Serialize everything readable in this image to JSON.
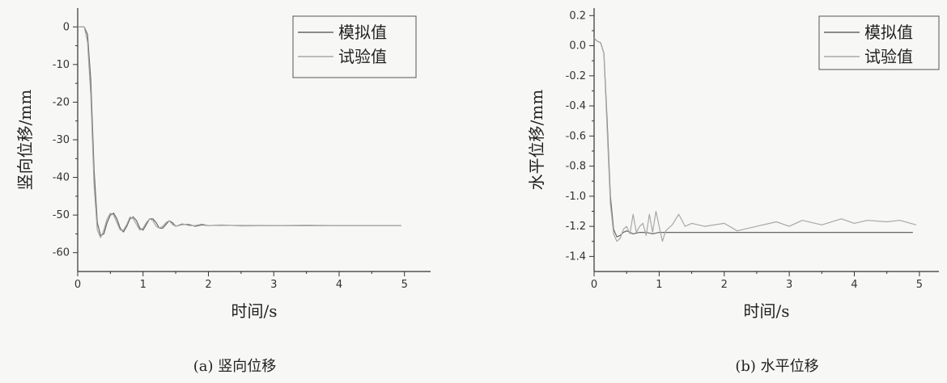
{
  "chart_data": [
    {
      "type": "line",
      "caption": "(a)   竖向位移",
      "xlabel": "时间/s",
      "ylabel": "竖向位移/mm",
      "xlim": [
        0,
        5.4
      ],
      "ylim": [
        -65,
        5
      ],
      "xticks": [
        0,
        1,
        2,
        3,
        4,
        5
      ],
      "yticks": [
        0,
        -10,
        -20,
        -30,
        -40,
        -50,
        -60
      ],
      "legend_position": "top-right",
      "series": [
        {
          "name": "模拟值",
          "color": "#666666",
          "x": [
            0,
            0.1,
            0.15,
            0.2,
            0.25,
            0.3,
            0.35,
            0.4,
            0.45,
            0.5,
            0.55,
            0.6,
            0.65,
            0.7,
            0.75,
            0.8,
            0.85,
            0.9,
            0.95,
            1.0,
            1.05,
            1.1,
            1.15,
            1.2,
            1.25,
            1.3,
            1.35,
            1.4,
            1.45,
            1.5,
            1.6,
            1.7,
            1.8,
            1.9,
            2.0,
            2.2,
            2.5,
            3.0,
            3.5,
            4.0,
            4.5,
            4.95
          ],
          "y": [
            0,
            0,
            -2,
            -14,
            -38,
            -52,
            -55.5,
            -55,
            -52,
            -50,
            -49.5,
            -51,
            -53.5,
            -54.5,
            -53,
            -51,
            -50.5,
            -51.5,
            -53.5,
            -54,
            -52.5,
            -51,
            -51,
            -52,
            -53.5,
            -53.5,
            -52.5,
            -51.5,
            -52,
            -53,
            -52.5,
            -52.5,
            -53,
            -52.6,
            -52.8,
            -52.7,
            -52.8,
            -52.8,
            -52.8,
            -52.8,
            -52.8,
            -52.8
          ]
        },
        {
          "name": "试验值",
          "color": "#a8a8a8",
          "x": [
            0,
            0.1,
            0.15,
            0.2,
            0.25,
            0.3,
            0.35,
            0.4,
            0.45,
            0.5,
            0.55,
            0.6,
            0.65,
            0.7,
            0.75,
            0.8,
            0.85,
            0.9,
            0.95,
            1.0,
            1.05,
            1.1,
            1.15,
            1.2,
            1.25,
            1.3,
            1.35,
            1.4,
            1.45,
            1.5,
            1.6,
            1.7,
            1.8,
            1.9,
            2.0,
            2.2,
            2.5,
            3.0,
            3.5,
            4.0,
            4.5,
            4.95
          ],
          "y": [
            0,
            0,
            -4,
            -18,
            -42,
            -54,
            -56,
            -54,
            -51,
            -49.5,
            -50,
            -52,
            -54,
            -54,
            -52.5,
            -50.5,
            -51,
            -52.5,
            -54,
            -53.5,
            -52,
            -51,
            -51.5,
            -53,
            -53.5,
            -53,
            -52,
            -51.5,
            -52.5,
            -53,
            -52.3,
            -52.8,
            -52.8,
            -52.4,
            -52.8,
            -52.6,
            -52.9,
            -52.8,
            -52.7,
            -52.8,
            -52.8,
            -52.8
          ]
        }
      ]
    },
    {
      "type": "line",
      "caption": "(b)  水平位移",
      "xlabel": "时间/s",
      "ylabel": "水平位移/mm",
      "xlim": [
        0,
        5.3
      ],
      "ylim": [
        -1.5,
        0.25
      ],
      "xticks": [
        0,
        1,
        2,
        3,
        4,
        5
      ],
      "yticks": [
        0.2,
        0.0,
        -0.2,
        -0.4,
        -0.6,
        -0.8,
        -1.0,
        -1.2,
        -1.4
      ],
      "legend_position": "top-right",
      "series": [
        {
          "name": "模拟值",
          "color": "#666666",
          "x": [
            0,
            0.05,
            0.1,
            0.15,
            0.2,
            0.25,
            0.3,
            0.35,
            0.4,
            0.45,
            0.5,
            0.55,
            0.6,
            0.7,
            0.8,
            0.9,
            1.0,
            1.2,
            1.5,
            2.0,
            3.0,
            4.0,
            4.9
          ],
          "y": [
            0.05,
            0.03,
            0.02,
            -0.05,
            -0.5,
            -1.0,
            -1.22,
            -1.27,
            -1.26,
            -1.24,
            -1.23,
            -1.24,
            -1.25,
            -1.24,
            -1.24,
            -1.25,
            -1.24,
            -1.24,
            -1.24,
            -1.24,
            -1.24,
            -1.24,
            -1.24
          ]
        },
        {
          "name": "试验值",
          "color": "#a8a8a8",
          "x": [
            0,
            0.05,
            0.1,
            0.15,
            0.2,
            0.25,
            0.3,
            0.35,
            0.4,
            0.45,
            0.5,
            0.55,
            0.6,
            0.65,
            0.7,
            0.75,
            0.8,
            0.85,
            0.9,
            0.95,
            1.0,
            1.05,
            1.1,
            1.2,
            1.3,
            1.4,
            1.5,
            1.7,
            2.0,
            2.2,
            2.5,
            2.8,
            3.0,
            3.2,
            3.5,
            3.8,
            4.0,
            4.2,
            4.5,
            4.7,
            4.95
          ],
          "y": [
            0.05,
            0.03,
            0.02,
            -0.05,
            -0.55,
            -1.05,
            -1.25,
            -1.3,
            -1.28,
            -1.22,
            -1.2,
            -1.25,
            -1.12,
            -1.24,
            -1.2,
            -1.18,
            -1.26,
            -1.12,
            -1.24,
            -1.1,
            -1.2,
            -1.3,
            -1.23,
            -1.19,
            -1.12,
            -1.2,
            -1.18,
            -1.2,
            -1.18,
            -1.23,
            -1.2,
            -1.17,
            -1.2,
            -1.16,
            -1.19,
            -1.15,
            -1.18,
            -1.16,
            -1.17,
            -1.16,
            -1.19
          ]
        }
      ]
    }
  ]
}
